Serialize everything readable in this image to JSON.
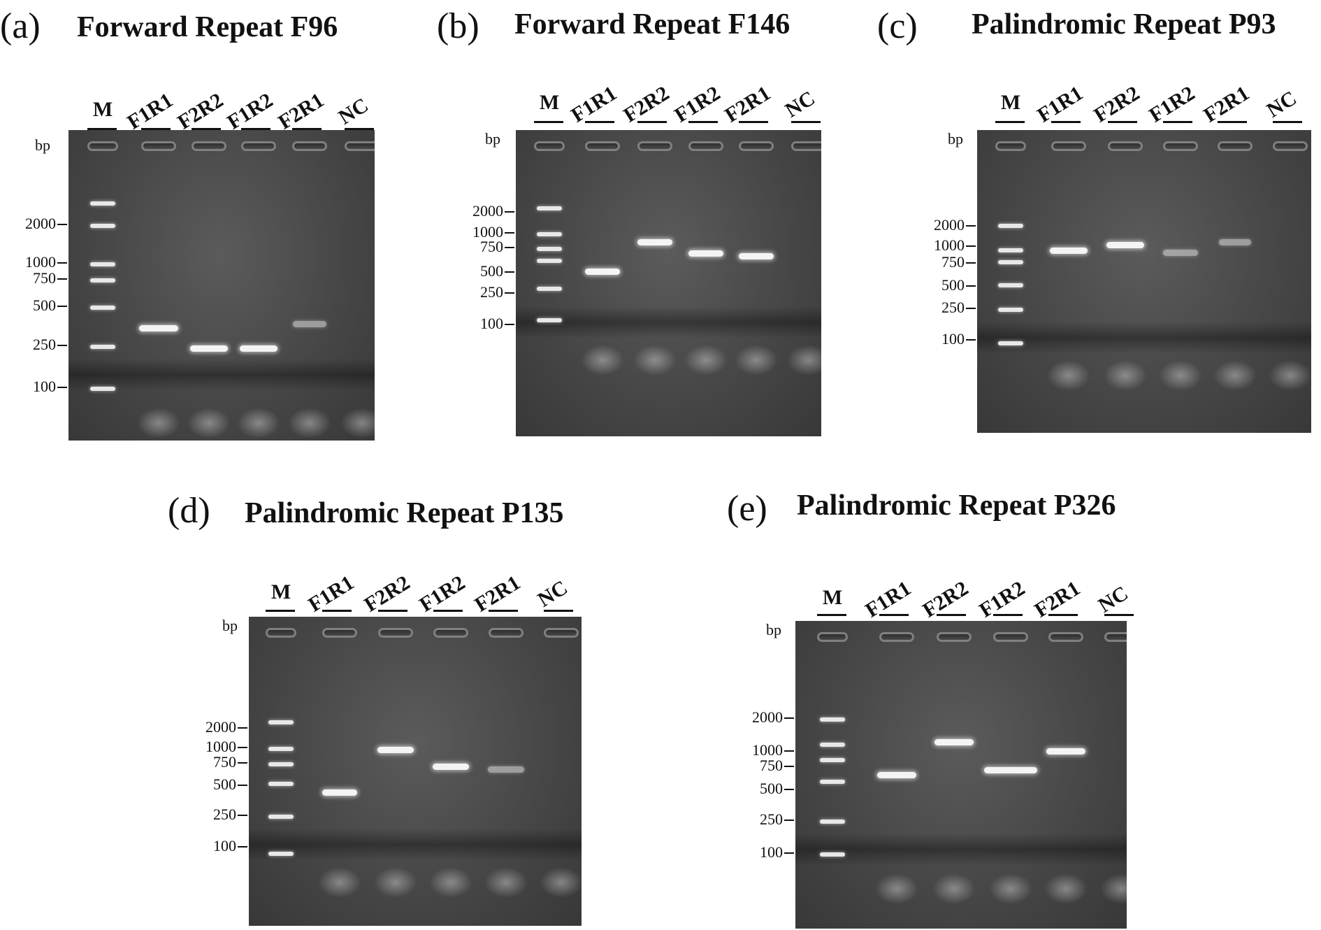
{
  "lanes": [
    "M",
    "F1R1",
    "F2R2",
    "F1R2",
    "F2R1",
    "NC"
  ],
  "bp_label": "bp",
  "panels": [
    {
      "letter": "(a)",
      "title": "Forward Repeat F96",
      "marker_labels": [
        "2000",
        "1000",
        "750",
        "500",
        "250",
        "100"
      ]
    },
    {
      "letter": "(b)",
      "title": "Forward Repeat F146",
      "marker_labels": [
        "2000",
        "1000",
        "750",
        "500",
        "250",
        "100"
      ]
    },
    {
      "letter": "(c)",
      "title": "Palindromic Repeat P93",
      "marker_labels": [
        "2000",
        "1000",
        "750",
        "500",
        "250",
        "100"
      ]
    },
    {
      "letter": "(d)",
      "title": "Palindromic Repeat P135",
      "marker_labels": [
        "2000",
        "1000",
        "750",
        "500",
        "250",
        "100"
      ]
    },
    {
      "letter": "(e)",
      "title": "Palindromic Repeat P326",
      "marker_labels": [
        "2000",
        "1000",
        "750",
        "500",
        "250",
        "100"
      ]
    }
  ]
}
